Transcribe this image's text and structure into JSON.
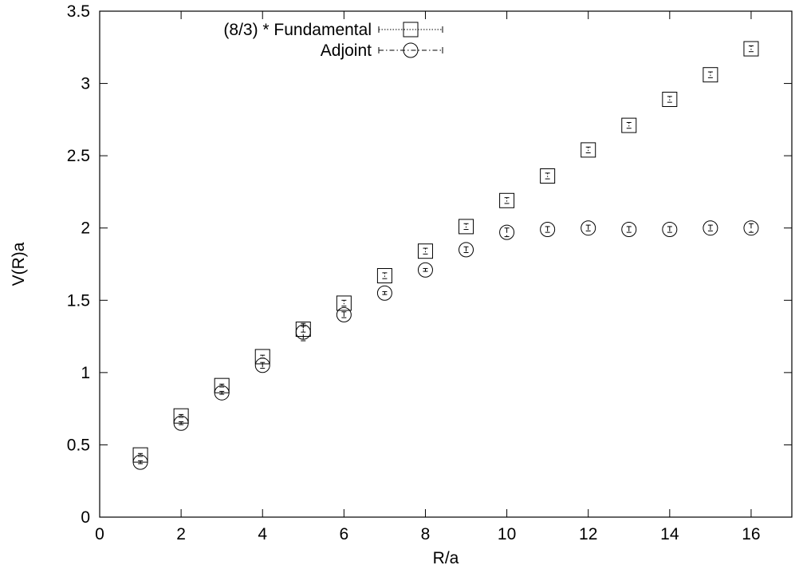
{
  "chart_data": {
    "type": "scatter",
    "xlabel": "R/a",
    "ylabel": "V(R)a",
    "xlim": [
      0,
      17
    ],
    "ylim": [
      0,
      3.5
    ],
    "x_ticks": [
      0,
      2,
      4,
      6,
      8,
      10,
      12,
      14,
      16
    ],
    "y_ticks": [
      0,
      0.5,
      1,
      1.5,
      2,
      2.5,
      3,
      3.5
    ],
    "x_tick_labels": [
      "0",
      "2",
      "4",
      "6",
      "8",
      "10",
      "12",
      "14",
      "16"
    ],
    "y_tick_labels": [
      "0",
      "0.5",
      "1",
      "1.5",
      "2",
      "2.5",
      "3",
      "3.5"
    ],
    "grid": false,
    "legend_position": "top-center",
    "series": [
      {
        "name": "(8/3) * Fundamental",
        "marker": "square",
        "line_style": "dotted",
        "x": [
          1,
          2,
          3,
          4,
          5,
          6,
          7,
          8,
          9,
          10,
          11,
          12,
          13,
          14,
          15,
          16
        ],
        "y": [
          0.43,
          0.7,
          0.91,
          1.11,
          1.3,
          1.48,
          1.67,
          1.84,
          2.01,
          2.19,
          2.36,
          2.54,
          2.71,
          2.89,
          3.06,
          3.24
        ],
        "error": [
          0.01,
          0.01,
          0.01,
          0.01,
          0.02,
          0.02,
          0.02,
          0.02,
          0.02,
          0.02,
          0.02,
          0.02,
          0.02,
          0.02,
          0.02,
          0.02
        ]
      },
      {
        "name": "Adjoint",
        "marker": "circle",
        "line_style": "dash-dot",
        "x": [
          1,
          2,
          3,
          4,
          5,
          6,
          7,
          8,
          9,
          10,
          11,
          12,
          13,
          14,
          15,
          16
        ],
        "y": [
          0.38,
          0.65,
          0.86,
          1.05,
          1.28,
          1.4,
          1.55,
          1.71,
          1.85,
          1.97,
          1.99,
          2.0,
          1.99,
          1.99,
          2.0,
          2.0
        ],
        "error": [
          0.01,
          0.01,
          0.01,
          0.02,
          0.06,
          0.02,
          0.01,
          0.01,
          0.02,
          0.03,
          0.02,
          0.02,
          0.02,
          0.02,
          0.02,
          0.03
        ]
      }
    ]
  }
}
